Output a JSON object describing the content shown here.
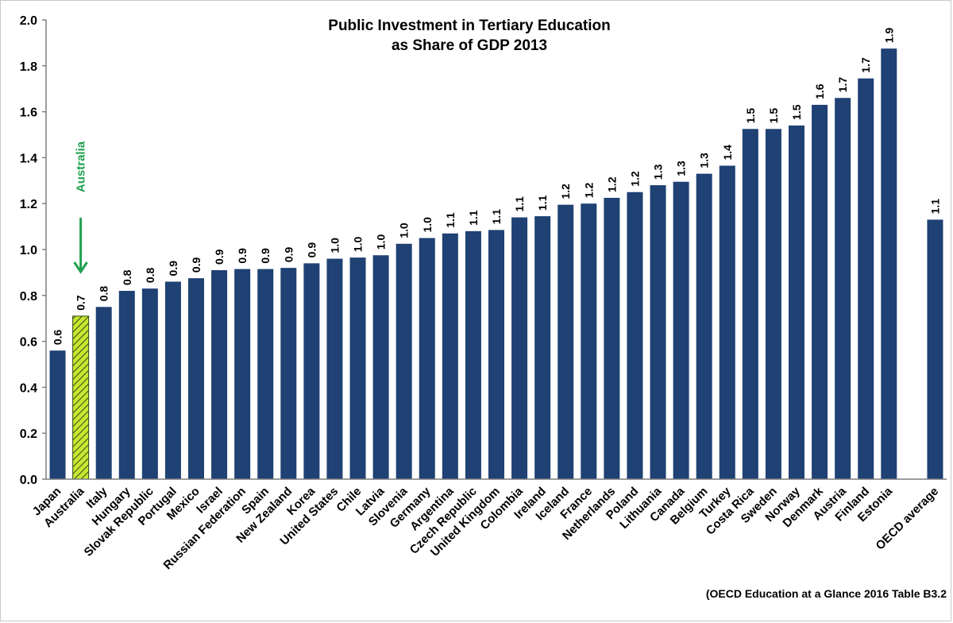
{
  "chart_data": {
    "type": "bar",
    "title": "Public Investment in Tertiary Education",
    "subtitle": "as Share of GDP 2013",
    "xlabel": "",
    "ylabel": "",
    "ylim": [
      0,
      2.0
    ],
    "yticks": [
      "0.0",
      "0.2",
      "0.4",
      "0.6",
      "0.8",
      "1.0",
      "1.2",
      "1.4",
      "1.6",
      "1.8",
      "2.0"
    ],
    "grid": false,
    "legend": "none",
    "categories": [
      "Japan",
      "Australia",
      "Italy",
      "Hungary",
      "Slovak Republic",
      "Portugal",
      "Mexico",
      "Israel",
      "Russian Federation",
      "Spain",
      "New Zealand",
      "Korea",
      "United States",
      "Chile",
      "Latvia",
      "Slovenia",
      "Germany",
      "Argentina",
      "Czech Republic",
      "United Kingdom",
      "Colombia",
      "Ireland",
      "Iceland",
      "France",
      "Netherlands",
      "Poland",
      "Lithuania",
      "Canada",
      "Belgium",
      "Turkey",
      "Costa Rica",
      "Sweden",
      "Norway",
      "Denmark",
      "Austria",
      "Finland",
      "Estonia",
      "OECD average"
    ],
    "values": [
      0.56,
      0.71,
      0.75,
      0.82,
      0.83,
      0.86,
      0.875,
      0.91,
      0.915,
      0.915,
      0.92,
      0.94,
      0.96,
      0.965,
      0.975,
      1.025,
      1.05,
      1.07,
      1.08,
      1.085,
      1.14,
      1.145,
      1.195,
      1.2,
      1.225,
      1.25,
      1.28,
      1.295,
      1.33,
      1.365,
      1.525,
      1.525,
      1.54,
      1.63,
      1.66,
      1.745,
      1.875,
      1.13
    ],
    "value_labels": [
      "0.6",
      "0.7",
      "0.8",
      "0.8",
      "0.8",
      "0.9",
      "0.9",
      "0.9",
      "0.9",
      "0.9",
      "0.9",
      "0.9",
      "1.0",
      "1.0",
      "1.0",
      "1.0",
      "1.0",
      "1.1",
      "1.1",
      "1.1",
      "1.1",
      "1.1",
      "1.2",
      "1.2",
      "1.2",
      "1.2",
      "1.3",
      "1.3",
      "1.3",
      "1.4",
      "1.5",
      "1.5",
      "1.5",
      "1.6",
      "1.7",
      "1.7",
      "1.9",
      "1.1"
    ],
    "highlight": "Australia",
    "annotation": "Australia",
    "source": "(OECD Education at a Glance 2016 Table B3.2",
    "colors": {
      "bar": "#1f4173",
      "highlight_fill": "#c8e632",
      "highlight_stripe": "#2e4a12",
      "annotation": "#20a050",
      "axis": "#7f7f7f"
    }
  }
}
